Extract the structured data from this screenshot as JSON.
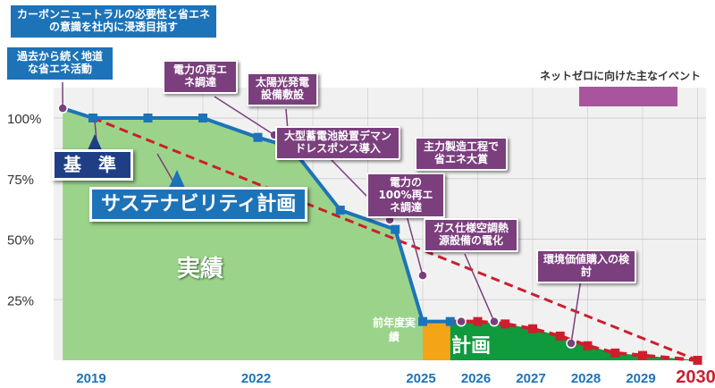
{
  "colors": {
    "base_fill": "#9cd38a",
    "prev_year_fill": "#f4a417",
    "plan_fill": "#0f9a3d",
    "actual_line": "#1d73b8",
    "target_line": "#cc1f2d",
    "event_marker": "#7b3f7e",
    "callout_bg": "#7b3f7e",
    "axis_year": "#1d73b8",
    "target_year": "#cc1f2d"
  },
  "legend": {
    "label": "ネットゼロに向けた主なイベント"
  },
  "area_labels": {
    "actual": "実績",
    "prev_year": "前年度実績",
    "plan": "計画"
  },
  "labels": {
    "base": "基 準",
    "sustainability_plan": "サステナビリティ計画",
    "necessity": "カーボンニュートラルの必要性と省エネの意識を社内に浸透目指す",
    "past_activities": "過去から続く地道な省エネ活動"
  },
  "events": [
    {
      "text": "電力の再エネ調達"
    },
    {
      "text": "太陽光発電設備敷設"
    },
    {
      "text": "大型蓄電池設置デマンドレスポンス導入"
    },
    {
      "text": "電力の100%再エネ調達"
    },
    {
      "text": "主力製造工程で省エネ大賞"
    },
    {
      "text": "ガス仕様空調熱源設備の電化"
    },
    {
      "text": "環境価値購入の検討"
    }
  ],
  "chart_data": {
    "type": "area",
    "y_ticks": [
      "100%",
      "75%",
      "50%",
      "25%"
    ],
    "ylim": [
      0,
      110
    ],
    "x_labels": [
      "2019",
      "2022",
      "2025",
      "2026",
      "2027",
      "2028",
      "2029",
      "2030"
    ],
    "series": [
      {
        "name": "実績",
        "x": [
          2018.45,
          2019,
          2020,
          2021,
          2022,
          2022.6,
          2023.5,
          2024.5,
          2025,
          2025.5
        ],
        "values": [
          104,
          100,
          100,
          100,
          92,
          88,
          62,
          54,
          16,
          16
        ]
      },
      {
        "name": "計画",
        "x": [
          2025.5,
          2026,
          2026.5,
          2027,
          2027.5,
          2028,
          2028.5,
          2029,
          2030
        ],
        "values": [
          16,
          16,
          15,
          13,
          10,
          6,
          3,
          2,
          0
        ]
      },
      {
        "name": "サステナビリティ計画",
        "x": [
          2019,
          2030
        ],
        "values": [
          100,
          0
        ]
      }
    ],
    "event_markers": [
      {
        "x": 2018.45,
        "y": 104
      },
      {
        "x": 2022.3,
        "y": 93
      },
      {
        "x": 2024.4,
        "y": 58
      },
      {
        "x": 2025.0,
        "y": 35
      },
      {
        "x": 2025.7,
        "y": 16
      },
      {
        "x": 2026.3,
        "y": 16
      },
      {
        "x": 2027.7,
        "y": 7
      }
    ]
  }
}
